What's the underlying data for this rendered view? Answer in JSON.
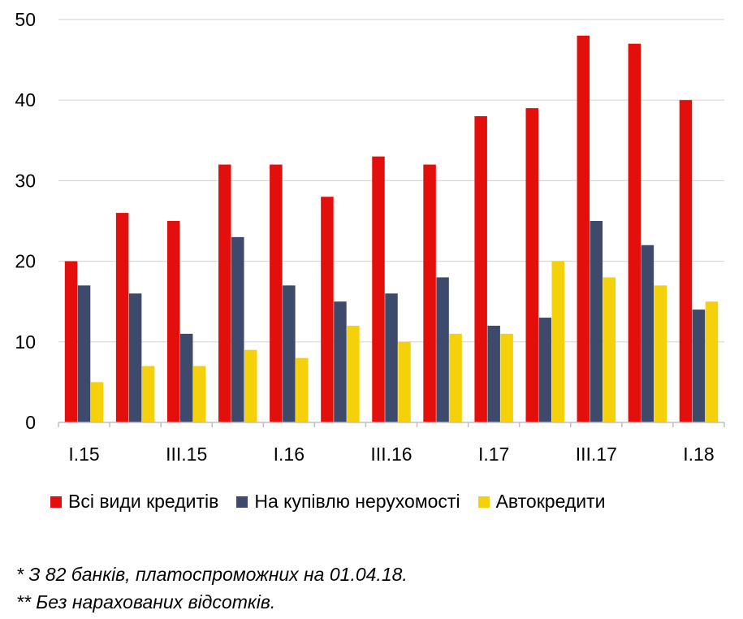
{
  "chart_data": {
    "type": "bar",
    "categories": [
      "I.15",
      "II.15",
      "III.15",
      "IV.15",
      "I.16",
      "II.16",
      "III.16",
      "IV.16",
      "I.17",
      "II.17",
      "III.17",
      "IV.17",
      "I.18"
    ],
    "tick_labels": [
      "I.15",
      "",
      "III.15",
      "",
      "I.16",
      "",
      "III.16",
      "",
      "I.17",
      "",
      "III.17",
      "",
      "I.18"
    ],
    "series": [
      {
        "name": "Всі види кредитів",
        "color": "#e30f0c",
        "values": [
          20,
          26,
          25,
          32,
          32,
          28,
          33,
          32,
          38,
          39,
          48,
          47,
          40
        ]
      },
      {
        "name": "На купівлю нерухомості",
        "color": "#3d4a6b",
        "values": [
          17,
          16,
          11,
          23,
          17,
          15,
          16,
          18,
          12,
          13,
          25,
          22,
          14
        ]
      },
      {
        "name": "Автокредити",
        "color": "#f5d10c",
        "values": [
          5,
          7,
          7,
          9,
          8,
          12,
          10,
          11,
          11,
          20,
          18,
          17,
          15
        ]
      }
    ],
    "ylim": [
      0,
      50
    ],
    "yticks": [
      0,
      10,
      20,
      30,
      40,
      50
    ],
    "grid": true,
    "legend_position": "bottom",
    "title": "",
    "xlabel": "",
    "ylabel": ""
  },
  "notes": [
    "* З 82 банків, платоспроможних на 01.04.18.",
    "** Без нарахованих відсотків."
  ]
}
